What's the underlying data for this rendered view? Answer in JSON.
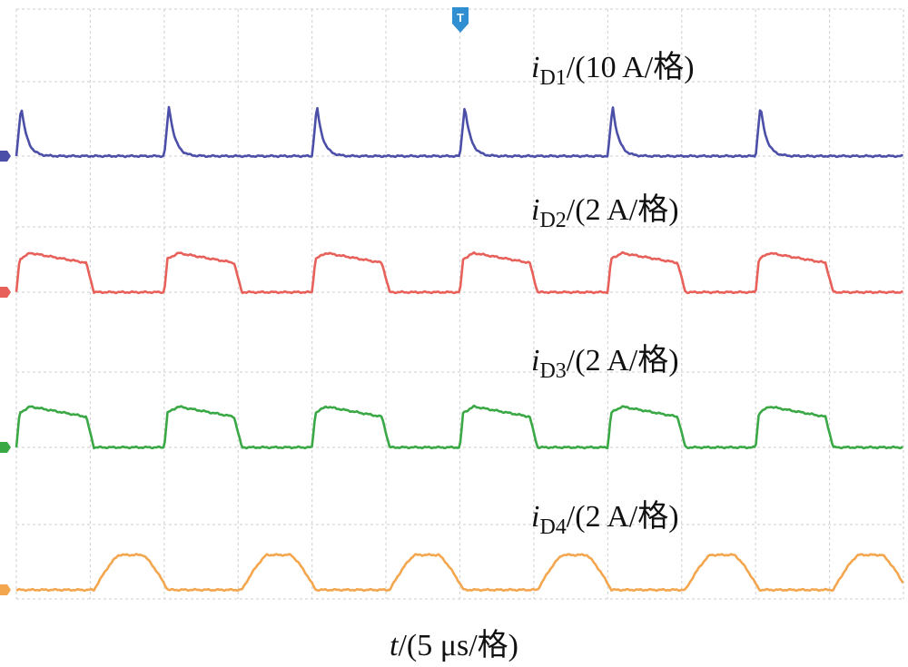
{
  "chart_data": {
    "type": "line",
    "title": "",
    "xlabel": {
      "var": "t",
      "unit": "/(5 μs/格)"
    },
    "x_divisions": 12,
    "grid": true,
    "trigger_marker": "T",
    "series": [
      {
        "label_var": "i",
        "label_sub": "D1",
        "label_unit": "/(10 A/格)",
        "color": "#4c4fa8",
        "waveform": "spike",
        "pulse_starts_div": [
          0.0,
          2.0,
          4.0,
          6.0,
          8.0,
          10.0
        ],
        "pulse_width_div": 0.55,
        "baseline_div": 0.0,
        "peak_div": 0.8
      },
      {
        "label_var": "i",
        "label_sub": "D2",
        "label_unit": "/(2 A/格)",
        "color": "#e8605a",
        "waveform": "trapezoid",
        "pulse_starts_div": [
          0.0,
          2.0,
          4.0,
          6.0,
          8.0,
          10.0
        ],
        "pulse_width_div": 1.05,
        "baseline_div": 0.0,
        "peak_div": 0.6
      },
      {
        "label_var": "i",
        "label_sub": "D3",
        "label_unit": "/(2 A/格)",
        "color": "#39a845",
        "waveform": "trapezoid",
        "pulse_starts_div": [
          0.0,
          2.0,
          4.0,
          6.0,
          8.0,
          10.0
        ],
        "pulse_width_div": 1.05,
        "baseline_div": 0.0,
        "peak_div": 0.6
      },
      {
        "label_var": "i",
        "label_sub": "D4",
        "label_unit": "/(2 A/格)",
        "color": "#f3a64e",
        "waveform": "arc",
        "pulse_starts_div": [
          1.05,
          3.05,
          5.05,
          7.05,
          9.05,
          11.05
        ],
        "pulse_width_div": 1.0,
        "baseline_div": 0.0,
        "peak_div": 0.55
      }
    ]
  }
}
